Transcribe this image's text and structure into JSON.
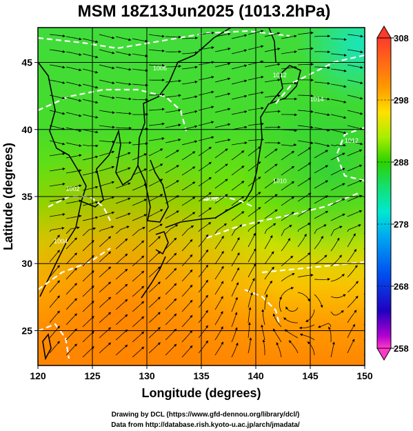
{
  "title": "MSM 18Z13Jun2025 (1013.2hPa)",
  "xlabel": "Longitude (degrees)",
  "ylabel": "Latitude  (degrees)",
  "x_ticks": [
    120,
    125,
    130,
    135,
    140,
    145,
    150
  ],
  "y_ticks": [
    25,
    30,
    35,
    40,
    45
  ],
  "extent": {
    "lon": [
      120,
      150
    ],
    "lat": [
      22.4,
      47.6
    ]
  },
  "colorbar": {
    "min": 258,
    "max": 308,
    "labels": [
      308,
      298,
      288,
      278,
      268,
      258
    ],
    "colors": {
      "c308": "#ff3a2a",
      "c300": "#ff9a00",
      "c296": "#ffe000",
      "c292": "#a8ee00",
      "c288": "#2cd200",
      "c284": "#14e070",
      "c280": "#00e8d0",
      "c276": "#00a8f0",
      "c270": "#0050f0",
      "c264": "#2000c0",
      "c260": "#b000d0",
      "c258": "#ff3ac8"
    }
  },
  "contour_labels": [
    {
      "text": "1002",
      "lon": 123.2,
      "lat": 35.4
    },
    {
      "text": "1004",
      "lon": 122.1,
      "lat": 31.5
    },
    {
      "text": "1012",
      "lon": 142.2,
      "lat": 43.9
    },
    {
      "text": "1014",
      "lon": 145.6,
      "lat": 42.1
    },
    {
      "text": "1010",
      "lon": 142.2,
      "lat": 36.0
    },
    {
      "text": "1012",
      "lon": 148.8,
      "lat": 39.0
    },
    {
      "text": "1006",
      "lon": 131.2,
      "lat": 44.4
    },
    {
      "text": "1008",
      "lon": 136.0,
      "lat": 34.7
    }
  ],
  "credits": [
    "Drawing by DCL (https://www.gfd-dennou.org/library/dcl/)",
    "Data from http://database.rish.kyoto-u.ac.jp/arch/jmadata/"
  ]
}
